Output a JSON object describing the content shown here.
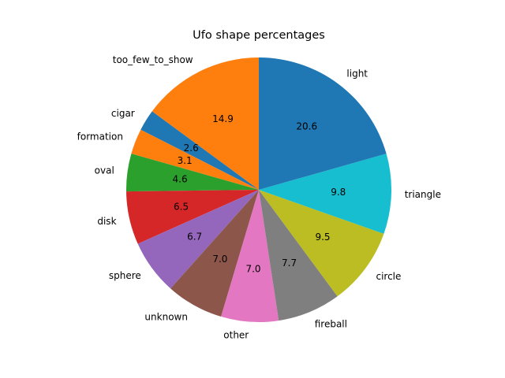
{
  "chart_data": {
    "type": "pie",
    "title": "Ufo shape percentages",
    "start_angle_deg": 90,
    "direction": "counterclockwise",
    "legend": "none",
    "slices": [
      {
        "label": "too_few_to_show",
        "value": 14.9,
        "color": "#ff7f0e"
      },
      {
        "label": "cigar",
        "value": 2.6,
        "color": "#1f77b4"
      },
      {
        "label": "formation",
        "value": 3.1,
        "color": "#ff7f0e"
      },
      {
        "label": "oval",
        "value": 4.6,
        "color": "#2ca02c"
      },
      {
        "label": "disk",
        "value": 6.5,
        "color": "#d62728"
      },
      {
        "label": "sphere",
        "value": 6.7,
        "color": "#9467bd"
      },
      {
        "label": "unknown",
        "value": 7.0,
        "color": "#8c564b"
      },
      {
        "label": "other",
        "value": 7.0,
        "color": "#e377c2"
      },
      {
        "label": "fireball",
        "value": 7.7,
        "color": "#7f7f7f"
      },
      {
        "label": "circle",
        "value": 9.5,
        "color": "#bcbd22"
      },
      {
        "label": "triangle",
        "value": 9.8,
        "color": "#17becf"
      },
      {
        "label": "light",
        "value": 20.6,
        "color": "#1f77b4"
      }
    ]
  }
}
